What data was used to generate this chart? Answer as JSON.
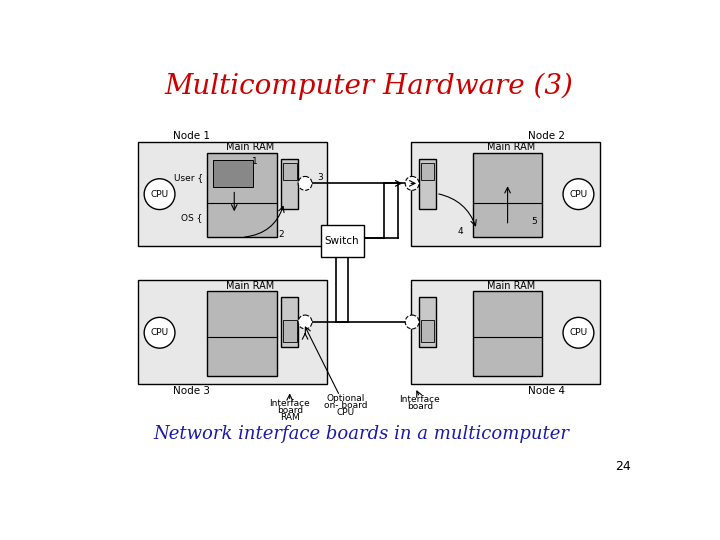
{
  "title": "Multicomputer Hardware (3)",
  "title_color": "#cc0000",
  "subtitle": "Network interface boards in a multicomputer",
  "subtitle_color": "#1a1aaa",
  "page_number": "24",
  "bg": "#ffffff",
  "node_fill": "#e8e8e8",
  "ram_fill": "#b8b8b8",
  "iface_fill": "#c8c8c8",
  "dark_fill": "#888888"
}
